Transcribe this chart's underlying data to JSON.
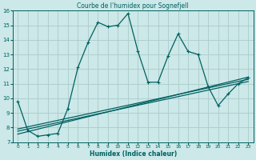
{
  "title": "Courbe de l'humidex pour Sognefjell",
  "xlabel": "Humidex (Indice chaleur)",
  "bg_color": "#cce8e8",
  "grid_color": "#aacccc",
  "line_color": "#006060",
  "xlim": [
    -0.5,
    23.5
  ],
  "ylim": [
    7,
    16
  ],
  "yticks": [
    7,
    8,
    9,
    10,
    11,
    12,
    13,
    14,
    15,
    16
  ],
  "xticks": [
    0,
    1,
    2,
    3,
    4,
    5,
    6,
    7,
    8,
    9,
    10,
    11,
    12,
    13,
    14,
    15,
    16,
    17,
    18,
    19,
    20,
    21,
    22,
    23
  ],
  "main_x": [
    0,
    1,
    2,
    3,
    4,
    5,
    6,
    7,
    8,
    9,
    10,
    11,
    12,
    13,
    14,
    15,
    16,
    17,
    18,
    19,
    20,
    21,
    22,
    23
  ],
  "main_y": [
    9.8,
    7.8,
    7.4,
    7.5,
    7.6,
    9.3,
    12.1,
    13.8,
    15.2,
    14.9,
    15.0,
    15.8,
    13.2,
    11.1,
    11.1,
    12.9,
    14.4,
    13.2,
    13.0,
    10.8,
    9.5,
    10.3,
    11.0,
    11.4
  ],
  "line1_x": [
    0,
    23
  ],
  "line1_y": [
    7.55,
    11.45
  ],
  "line2_x": [
    0,
    23
  ],
  "line2_y": [
    7.75,
    11.15
  ],
  "line3_x": [
    0,
    23
  ],
  "line3_y": [
    7.9,
    11.3
  ]
}
